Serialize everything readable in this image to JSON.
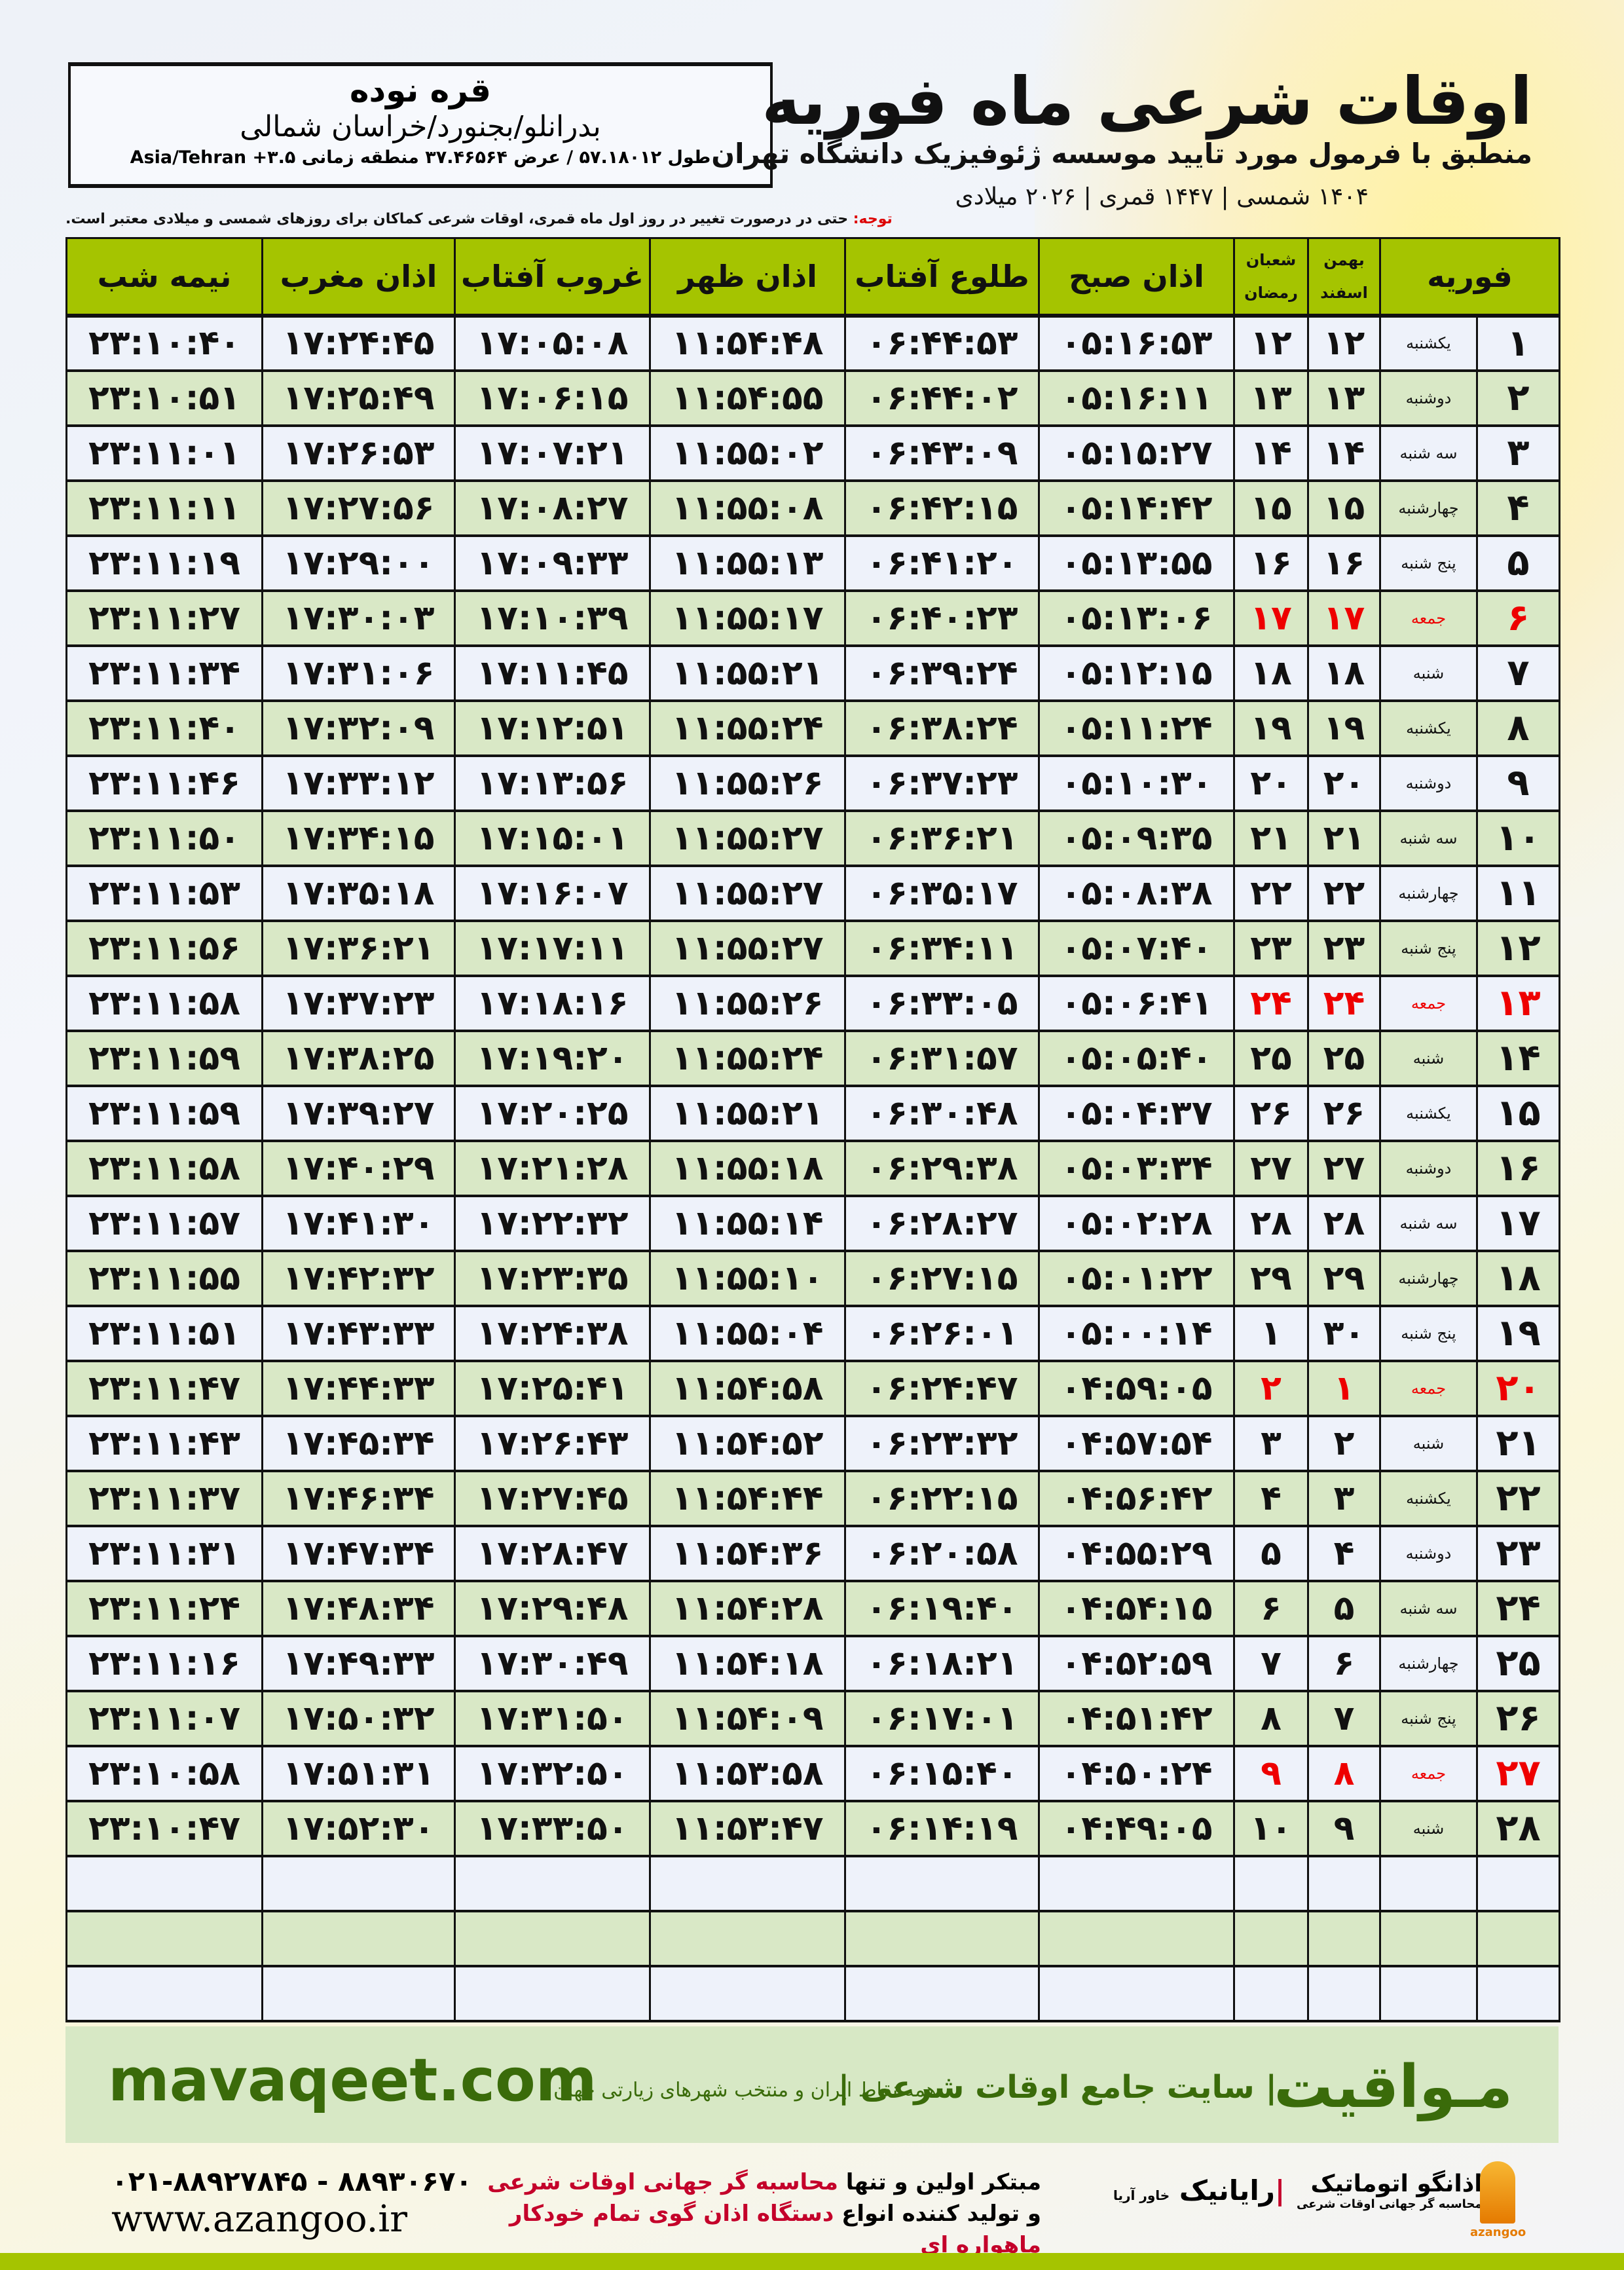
{
  "header": {
    "title": "اوقات شرعی ماه فوریه",
    "subtitle": "منطبق با فرمول مورد تایید موسسه ژئوفیزیک دانشگاه تهران",
    "years": "۱۴۰۴ شمسی | ۱۴۴۷ قمری | ۲۰۲۶ میلادی"
  },
  "location": {
    "city": "قره نوده",
    "region": "بدرانلو/بجنورد/خراسان شمالی",
    "coords": "طول ۵۷.۱۸۰۱۲ / عرض ۳۷.۴۶۵۶۴ منطقه زمانی ۳.۵+ Asia/Tehran"
  },
  "note": {
    "label": "توجه:",
    "text": " حتی در درصورت تغییر در روز اول ماه قمری، اوقات شرعی کماکان برای روزهای شمسی و میلادی معتبر است."
  },
  "table": {
    "headers": {
      "month": "فوریه",
      "bahman": "بهمن",
      "esfand": "اسفند",
      "shaban": "شعبان",
      "ramadan": "رمضان",
      "fajr": "اذان صبح",
      "sunrise": "طلوع آفتاب",
      "dhuhr": "اذان ظهر",
      "sunset": "غروب آفتاب",
      "maghrib": "اذان مغرب",
      "midnight": "نیمه شب"
    },
    "friday_color": "#e00000",
    "header_color": "#a5c400",
    "rows": [
      {
        "day": "۱",
        "wd": "یکشنبه",
        "bh": "۱۲",
        "sh": "۱۲",
        "fajr": "۰۵:۱۶:۵۳",
        "sunrise": "۰۶:۴۴:۵۳",
        "dhuhr": "۱۱:۵۴:۴۸",
        "sunset": "۱۷:۰۵:۰۸",
        "maghrib": "۱۷:۲۴:۴۵",
        "midnight": "۲۳:۱۰:۴۰"
      },
      {
        "day": "۲",
        "wd": "دوشنبه",
        "bh": "۱۳",
        "sh": "۱۳",
        "fajr": "۰۵:۱۶:۱۱",
        "sunrise": "۰۶:۴۴:۰۲",
        "dhuhr": "۱۱:۵۴:۵۵",
        "sunset": "۱۷:۰۶:۱۵",
        "maghrib": "۱۷:۲۵:۴۹",
        "midnight": "۲۳:۱۰:۵۱"
      },
      {
        "day": "۳",
        "wd": "سه شنبه",
        "bh": "۱۴",
        "sh": "۱۴",
        "fajr": "۰۵:۱۵:۲۷",
        "sunrise": "۰۶:۴۳:۰۹",
        "dhuhr": "۱۱:۵۵:۰۲",
        "sunset": "۱۷:۰۷:۲۱",
        "maghrib": "۱۷:۲۶:۵۳",
        "midnight": "۲۳:۱۱:۰۱"
      },
      {
        "day": "۴",
        "wd": "چهارشنبه",
        "bh": "۱۵",
        "sh": "۱۵",
        "fajr": "۰۵:۱۴:۴۲",
        "sunrise": "۰۶:۴۲:۱۵",
        "dhuhr": "۱۱:۵۵:۰۸",
        "sunset": "۱۷:۰۸:۲۷",
        "maghrib": "۱۷:۲۷:۵۶",
        "midnight": "۲۳:۱۱:۱۱"
      },
      {
        "day": "۵",
        "wd": "پنج شنبه",
        "bh": "۱۶",
        "sh": "۱۶",
        "fajr": "۰۵:۱۳:۵۵",
        "sunrise": "۰۶:۴۱:۲۰",
        "dhuhr": "۱۱:۵۵:۱۳",
        "sunset": "۱۷:۰۹:۳۳",
        "maghrib": "۱۷:۲۹:۰۰",
        "midnight": "۲۳:۱۱:۱۹"
      },
      {
        "day": "۶",
        "wd": "جمعه",
        "bh": "۱۷",
        "sh": "۱۷",
        "fajr": "۰۵:۱۳:۰۶",
        "sunrise": "۰۶:۴۰:۲۳",
        "dhuhr": "۱۱:۵۵:۱۷",
        "sunset": "۱۷:۱۰:۳۹",
        "maghrib": "۱۷:۳۰:۰۳",
        "midnight": "۲۳:۱۱:۲۷",
        "friday": true
      },
      {
        "day": "۷",
        "wd": "شنبه",
        "bh": "۱۸",
        "sh": "۱۸",
        "fajr": "۰۵:۱۲:۱۵",
        "sunrise": "۰۶:۳۹:۲۴",
        "dhuhr": "۱۱:۵۵:۲۱",
        "sunset": "۱۷:۱۱:۴۵",
        "maghrib": "۱۷:۳۱:۰۶",
        "midnight": "۲۳:۱۱:۳۴"
      },
      {
        "day": "۸",
        "wd": "یکشنبه",
        "bh": "۱۹",
        "sh": "۱۹",
        "fajr": "۰۵:۱۱:۲۴",
        "sunrise": "۰۶:۳۸:۲۴",
        "dhuhr": "۱۱:۵۵:۲۴",
        "sunset": "۱۷:۱۲:۵۱",
        "maghrib": "۱۷:۳۲:۰۹",
        "midnight": "۲۳:۱۱:۴۰"
      },
      {
        "day": "۹",
        "wd": "دوشنبه",
        "bh": "۲۰",
        "sh": "۲۰",
        "fajr": "۰۵:۱۰:۳۰",
        "sunrise": "۰۶:۳۷:۲۳",
        "dhuhr": "۱۱:۵۵:۲۶",
        "sunset": "۱۷:۱۳:۵۶",
        "maghrib": "۱۷:۳۳:۱۲",
        "midnight": "۲۳:۱۱:۴۶"
      },
      {
        "day": "۱۰",
        "wd": "سه شنبه",
        "bh": "۲۱",
        "sh": "۲۱",
        "fajr": "۰۵:۰۹:۳۵",
        "sunrise": "۰۶:۳۶:۲۱",
        "dhuhr": "۱۱:۵۵:۲۷",
        "sunset": "۱۷:۱۵:۰۱",
        "maghrib": "۱۷:۳۴:۱۵",
        "midnight": "۲۳:۱۱:۵۰"
      },
      {
        "day": "۱۱",
        "wd": "چهارشنبه",
        "bh": "۲۲",
        "sh": "۲۲",
        "fajr": "۰۵:۰۸:۳۸",
        "sunrise": "۰۶:۳۵:۱۷",
        "dhuhr": "۱۱:۵۵:۲۷",
        "sunset": "۱۷:۱۶:۰۷",
        "maghrib": "۱۷:۳۵:۱۸",
        "midnight": "۲۳:۱۱:۵۳"
      },
      {
        "day": "۱۲",
        "wd": "پنج شنبه",
        "bh": "۲۳",
        "sh": "۲۳",
        "fajr": "۰۵:۰۷:۴۰",
        "sunrise": "۰۶:۳۴:۱۱",
        "dhuhr": "۱۱:۵۵:۲۷",
        "sunset": "۱۷:۱۷:۱۱",
        "maghrib": "۱۷:۳۶:۲۱",
        "midnight": "۲۳:۱۱:۵۶"
      },
      {
        "day": "۱۳",
        "wd": "جمعه",
        "bh": "۲۴",
        "sh": "۲۴",
        "fajr": "۰۵:۰۶:۴۱",
        "sunrise": "۰۶:۳۳:۰۵",
        "dhuhr": "۱۱:۵۵:۲۶",
        "sunset": "۱۷:۱۸:۱۶",
        "maghrib": "۱۷:۳۷:۲۳",
        "midnight": "۲۳:۱۱:۵۸",
        "friday": true
      },
      {
        "day": "۱۴",
        "wd": "شنبه",
        "bh": "۲۵",
        "sh": "۲۵",
        "fajr": "۰۵:۰۵:۴۰",
        "sunrise": "۰۶:۳۱:۵۷",
        "dhuhr": "۱۱:۵۵:۲۴",
        "sunset": "۱۷:۱۹:۲۰",
        "maghrib": "۱۷:۳۸:۲۵",
        "midnight": "۲۳:۱۱:۵۹"
      },
      {
        "day": "۱۵",
        "wd": "یکشنبه",
        "bh": "۲۶",
        "sh": "۲۶",
        "fajr": "۰۵:۰۴:۳۷",
        "sunrise": "۰۶:۳۰:۴۸",
        "dhuhr": "۱۱:۵۵:۲۱",
        "sunset": "۱۷:۲۰:۲۵",
        "maghrib": "۱۷:۳۹:۲۷",
        "midnight": "۲۳:۱۱:۵۹"
      },
      {
        "day": "۱۶",
        "wd": "دوشنبه",
        "bh": "۲۷",
        "sh": "۲۷",
        "fajr": "۰۵:۰۳:۳۴",
        "sunrise": "۰۶:۲۹:۳۸",
        "dhuhr": "۱۱:۵۵:۱۸",
        "sunset": "۱۷:۲۱:۲۸",
        "maghrib": "۱۷:۴۰:۲۹",
        "midnight": "۲۳:۱۱:۵۸"
      },
      {
        "day": "۱۷",
        "wd": "سه شنبه",
        "bh": "۲۸",
        "sh": "۲۸",
        "fajr": "۰۵:۰۲:۲۸",
        "sunrise": "۰۶:۲۸:۲۷",
        "dhuhr": "۱۱:۵۵:۱۴",
        "sunset": "۱۷:۲۲:۳۲",
        "maghrib": "۱۷:۴۱:۳۰",
        "midnight": "۲۳:۱۱:۵۷"
      },
      {
        "day": "۱۸",
        "wd": "چهارشنبه",
        "bh": "۲۹",
        "sh": "۲۹",
        "fajr": "۰۵:۰۱:۲۲",
        "sunrise": "۰۶:۲۷:۱۵",
        "dhuhr": "۱۱:۵۵:۱۰",
        "sunset": "۱۷:۲۳:۳۵",
        "maghrib": "۱۷:۴۲:۳۲",
        "midnight": "۲۳:۱۱:۵۵"
      },
      {
        "day": "۱۹",
        "wd": "پنج شنبه",
        "bh": "۳۰",
        "sh": "۱",
        "fajr": "۰۵:۰۰:۱۴",
        "sunrise": "۰۶:۲۶:۰۱",
        "dhuhr": "۱۱:۵۵:۰۴",
        "sunset": "۱۷:۲۴:۳۸",
        "maghrib": "۱۷:۴۳:۳۳",
        "midnight": "۲۳:۱۱:۵۱"
      },
      {
        "day": "۲۰",
        "wd": "جمعه",
        "bh": "۱",
        "sh": "۲",
        "fajr": "۰۴:۵۹:۰۵",
        "sunrise": "۰۶:۲۴:۴۷",
        "dhuhr": "۱۱:۵۴:۵۸",
        "sunset": "۱۷:۲۵:۴۱",
        "maghrib": "۱۷:۴۴:۳۳",
        "midnight": "۲۳:۱۱:۴۷",
        "friday": true
      },
      {
        "day": "۲۱",
        "wd": "شنبه",
        "bh": "۲",
        "sh": "۳",
        "fajr": "۰۴:۵۷:۵۴",
        "sunrise": "۰۶:۲۳:۳۲",
        "dhuhr": "۱۱:۵۴:۵۲",
        "sunset": "۱۷:۲۶:۴۳",
        "maghrib": "۱۷:۴۵:۳۴",
        "midnight": "۲۳:۱۱:۴۳"
      },
      {
        "day": "۲۲",
        "wd": "یکشنبه",
        "bh": "۳",
        "sh": "۴",
        "fajr": "۰۴:۵۶:۴۲",
        "sunrise": "۰۶:۲۲:۱۵",
        "dhuhr": "۱۱:۵۴:۴۴",
        "sunset": "۱۷:۲۷:۴۵",
        "maghrib": "۱۷:۴۶:۳۴",
        "midnight": "۲۳:۱۱:۳۷"
      },
      {
        "day": "۲۳",
        "wd": "دوشنبه",
        "bh": "۴",
        "sh": "۵",
        "fajr": "۰۴:۵۵:۲۹",
        "sunrise": "۰۶:۲۰:۵۸",
        "dhuhr": "۱۱:۵۴:۳۶",
        "sunset": "۱۷:۲۸:۴۷",
        "maghrib": "۱۷:۴۷:۳۴",
        "midnight": "۲۳:۱۱:۳۱"
      },
      {
        "day": "۲۴",
        "wd": "سه شنبه",
        "bh": "۵",
        "sh": "۶",
        "fajr": "۰۴:۵۴:۱۵",
        "sunrise": "۰۶:۱۹:۴۰",
        "dhuhr": "۱۱:۵۴:۲۸",
        "sunset": "۱۷:۲۹:۴۸",
        "maghrib": "۱۷:۴۸:۳۴",
        "midnight": "۲۳:۱۱:۲۴"
      },
      {
        "day": "۲۵",
        "wd": "چهارشنبه",
        "bh": "۶",
        "sh": "۷",
        "fajr": "۰۴:۵۲:۵۹",
        "sunrise": "۰۶:۱۸:۲۱",
        "dhuhr": "۱۱:۵۴:۱۸",
        "sunset": "۱۷:۳۰:۴۹",
        "maghrib": "۱۷:۴۹:۳۳",
        "midnight": "۲۳:۱۱:۱۶"
      },
      {
        "day": "۲۶",
        "wd": "پنج شنبه",
        "bh": "۷",
        "sh": "۸",
        "fajr": "۰۴:۵۱:۴۲",
        "sunrise": "۰۶:۱۷:۰۱",
        "dhuhr": "۱۱:۵۴:۰۹",
        "sunset": "۱۷:۳۱:۵۰",
        "maghrib": "۱۷:۵۰:۳۲",
        "midnight": "۲۳:۱۱:۰۷"
      },
      {
        "day": "۲۷",
        "wd": "جمعه",
        "bh": "۸",
        "sh": "۹",
        "fajr": "۰۴:۵۰:۲۴",
        "sunrise": "۰۶:۱۵:۴۰",
        "dhuhr": "۱۱:۵۳:۵۸",
        "sunset": "۱۷:۳۲:۵۰",
        "maghrib": "۱۷:۵۱:۳۱",
        "midnight": "۲۳:۱۰:۵۸",
        "friday": true
      },
      {
        "day": "۲۸",
        "wd": "شنبه",
        "bh": "۹",
        "sh": "۱۰",
        "fajr": "۰۴:۴۹:۰۵",
        "sunrise": "۰۶:۱۴:۱۹",
        "dhuhr": "۱۱:۵۳:۴۷",
        "sunset": "۱۷:۳۳:۵۰",
        "maghrib": "۱۷:۵۲:۳۰",
        "midnight": "۲۳:۱۰:۴۷"
      }
    ]
  },
  "footer": {
    "brand": "مـواقیت",
    "slogan": "| سایت جامع اوقات شرعی |",
    "slogan2": "همه نقاط ایران و منتخب شهرهای زیارتی جهان",
    "site": "mavaqeet.com",
    "phone": "۰۲۱-۸۸۹۲۷۸۴۵ - ۸۸۹۳۰۶۷۰",
    "web": "www.azangoo.ir",
    "promo1a": "مبتکر اولین و تنها ",
    "promo1b": "محاسبه گر جهانی اوقات شرعی",
    "promo2a": "و تولید کننده انواع ",
    "promo2b": "دستگاه اذان گوی تمام خودکار ماهواره ای",
    "logo1": "رایانیک",
    "logo1b": "خاور آریا",
    "logo2": "اذانگو اتوماتیک",
    "logo2b": "محاسبه گر جهانی اوقات شرعی",
    "logo2c": "azangoo"
  }
}
